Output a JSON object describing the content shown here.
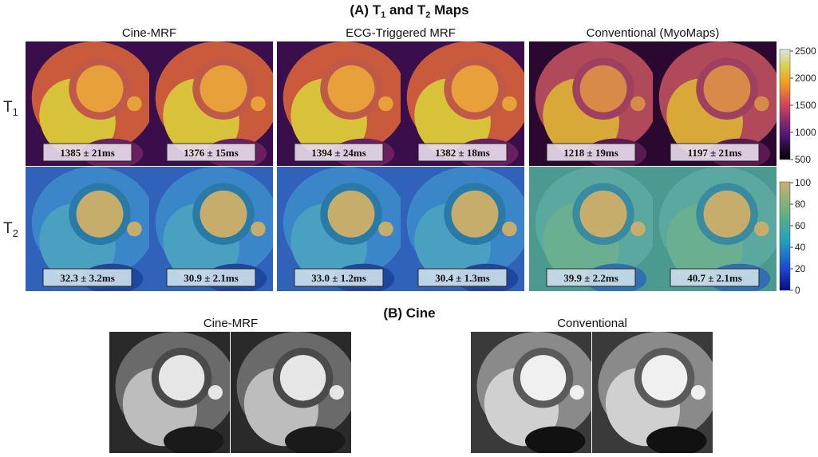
{
  "title": [
    "(A) T",
    "1",
    " and T",
    "2",
    " Maps"
  ],
  "columns": [
    "Cine-MRF",
    "ECG-Triggered MRF",
    "Conventional (MyoMaps)"
  ],
  "rows": [
    {
      "label": [
        "T",
        "1"
      ],
      "measurements": [
        "1385 ± 21ms",
        "1376 ± 15ms",
        "1394 ± 24ms",
        "1382 ± 18ms",
        "1218 ± 19ms",
        "1197 ± 21ms"
      ]
    },
    {
      "label": [
        "T",
        "2"
      ],
      "measurements": [
        "32.3 ± 3.2ms",
        "30.9 ± 2.1ms",
        "33.0 ± 1.2ms",
        "30.4 ± 1.3ms",
        "39.9 ± 2.2ms",
        "40.7 ± 2.1ms"
      ]
    }
  ],
  "colorbars": [
    {
      "lim": [
        500,
        2500
      ],
      "ticks": [
        500,
        1000,
        1500,
        2000,
        2500
      ]
    },
    {
      "lim": [
        0,
        100
      ],
      "ticks": [
        0,
        20,
        40,
        60,
        80,
        100
      ]
    }
  ],
  "cine": {
    "title": "(B) Cine",
    "columns": [
      "Cine-MRF",
      "Conventional"
    ]
  }
}
